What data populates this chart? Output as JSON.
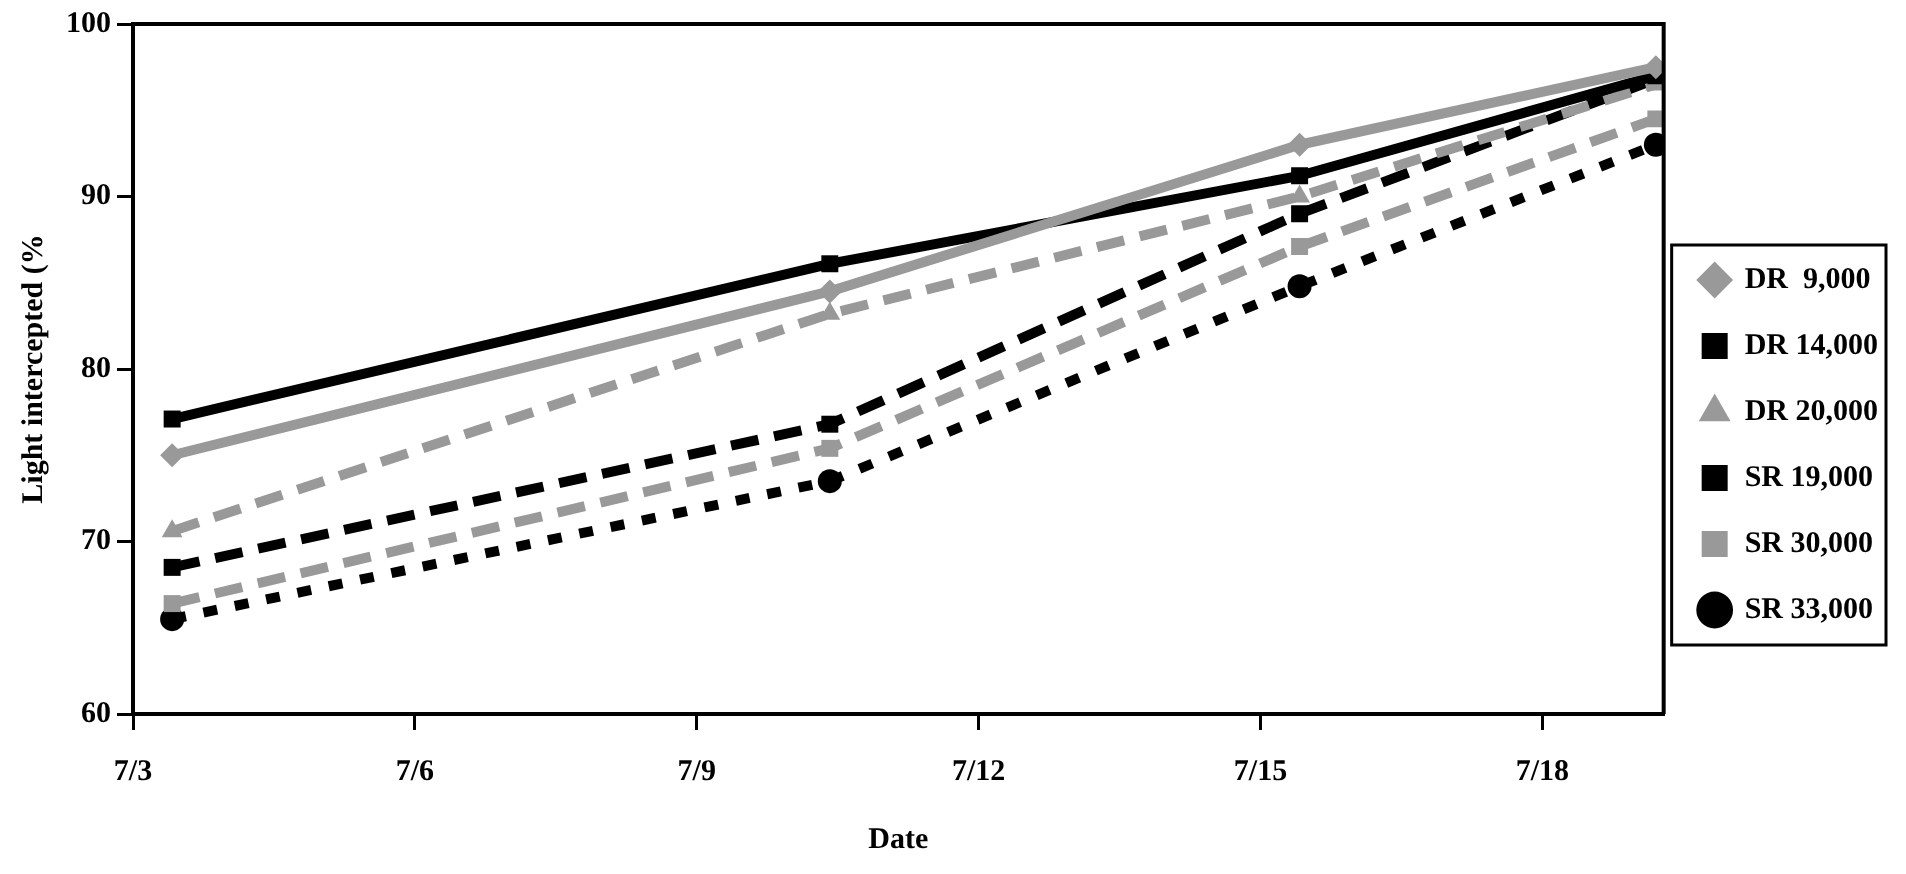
{
  "chart_data": {
    "type": "line",
    "xlabel": "Date",
    "ylabel": "Light intercepted (%",
    "x": [
      "--07-03T10:00",
      "--07-10T10:00",
      "--07-15T10:00",
      "--07-19T05:00"
    ],
    "xlim": [
      "--07-03",
      "--07-19T07:00"
    ],
    "xticks": [
      {
        "value": "--07-03",
        "label": "7/3"
      },
      {
        "value": "--07-06",
        "label": "7/6"
      },
      {
        "value": "--07-09",
        "label": "7/9"
      },
      {
        "value": "--07-12",
        "label": "7/12"
      },
      {
        "value": "--07-15",
        "label": "7/15"
      },
      {
        "value": "--07-18",
        "label": "7/18"
      }
    ],
    "ylim": [
      60,
      100
    ],
    "yticks": [
      60,
      70,
      80,
      90,
      100
    ],
    "grid": false,
    "legend": "right",
    "series": [
      {
        "name": "DR  9,000",
        "color": "#999999",
        "marker": "diamond",
        "line_style": "solid",
        "values": [
          75,
          84.5,
          93,
          97.5
        ]
      },
      {
        "name": "DR 14,000",
        "color": "#000000",
        "marker": "square",
        "line_style": "solid",
        "values": [
          77.1,
          86.1,
          91.2,
          97
        ]
      },
      {
        "name": "DR 20,000",
        "color": "#999999",
        "marker": "triangle",
        "line_style": "dashed",
        "values": [
          70.6,
          83.2,
          90,
          96.5
        ]
      },
      {
        "name": "SR 19,000",
        "color": "#000000",
        "marker": "square",
        "line_style": "dashed",
        "values": [
          68.5,
          76.8,
          89,
          96.8
        ]
      },
      {
        "name": "SR 30,000",
        "color": "#999999",
        "marker": "square",
        "line_style": "dashed",
        "values": [
          66.4,
          75.4,
          87.1,
          94.5
        ]
      },
      {
        "name": "SR 33,000",
        "color": "#000000",
        "marker": "circle",
        "line_style": "dotted",
        "values": [
          65.5,
          73.5,
          84.8,
          93
        ]
      }
    ]
  }
}
